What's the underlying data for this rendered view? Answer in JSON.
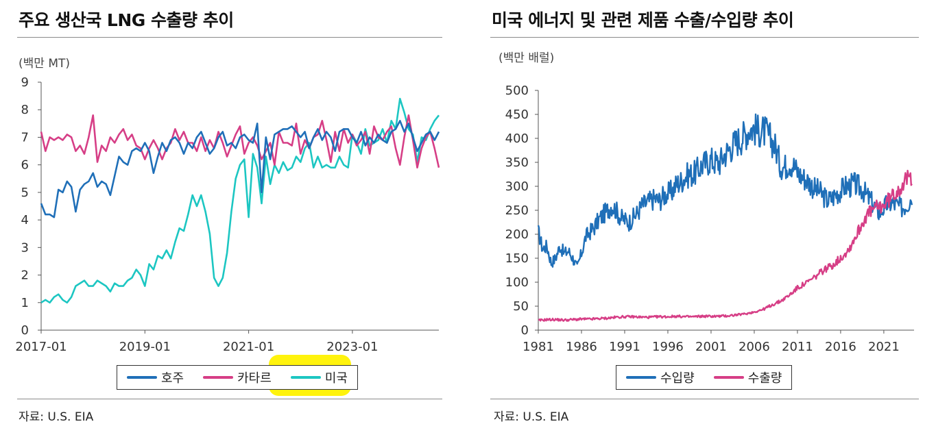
{
  "left": {
    "title": "주요 생산국 LNG 수출량 추이",
    "unit": "(백만 MT)",
    "source": "자료: U.S. EIA",
    "colors": {
      "australia": "#1f6fb8",
      "qatar": "#d63e86",
      "us": "#1cc6c2"
    },
    "chart_data": {
      "type": "line",
      "ylim": [
        0,
        9
      ],
      "yticks": [
        "0",
        "1",
        "2",
        "3",
        "4",
        "5",
        "6",
        "7",
        "8",
        "9"
      ],
      "xticks": [
        {
          "label": "2017-01",
          "index": 0
        },
        {
          "label": "2019-01",
          "index": 24
        },
        {
          "label": "2021-01",
          "index": 48
        },
        {
          "label": "2023-01",
          "index": 72
        }
      ],
      "n_points": 93,
      "series": [
        {
          "name": "호주",
          "key": "australia",
          "values": [
            4.6,
            4.2,
            4.2,
            4.1,
            5.1,
            5.0,
            5.4,
            5.2,
            4.3,
            5.1,
            5.3,
            5.4,
            5.7,
            5.2,
            5.4,
            5.3,
            4.9,
            5.6,
            6.3,
            6.1,
            6.0,
            6.5,
            6.6,
            6.5,
            6.8,
            6.5,
            5.7,
            6.3,
            6.8,
            6.5,
            6.9,
            7.0,
            6.8,
            6.4,
            6.8,
            6.6,
            7.0,
            7.2,
            6.8,
            6.4,
            6.6,
            7.0,
            7.2,
            6.7,
            6.8,
            6.6,
            7.0,
            7.1,
            6.9,
            6.8,
            7.5,
            5.0,
            7.0,
            6.2,
            7.1,
            7.2,
            7.3,
            7.3,
            7.4,
            7.2,
            7.0,
            7.2,
            6.6,
            7.0,
            7.3,
            6.9,
            7.2,
            7.0,
            6.5,
            7.2,
            7.3,
            7.3,
            7.0,
            6.8,
            7.2,
            6.7,
            7.0,
            6.8,
            7.1,
            6.9,
            6.8,
            7.2,
            7.3,
            7.6,
            7.2,
            7.5,
            7.0,
            6.5,
            6.8,
            7.1,
            7.2,
            6.9,
            7.2
          ]
        },
        {
          "name": "카타르",
          "key": "qatar",
          "values": [
            7.2,
            6.5,
            7.0,
            6.9,
            7.0,
            6.9,
            7.1,
            7.0,
            6.5,
            6.7,
            6.4,
            7.0,
            7.8,
            6.1,
            6.7,
            6.5,
            7.0,
            6.8,
            7.1,
            7.3,
            6.9,
            7.1,
            6.7,
            6.6,
            6.2,
            6.6,
            6.9,
            6.6,
            6.2,
            6.6,
            6.8,
            7.3,
            6.9,
            7.2,
            6.8,
            6.8,
            6.5,
            7.0,
            6.5,
            6.9,
            6.6,
            7.2,
            6.8,
            6.3,
            6.7,
            7.1,
            7.4,
            6.4,
            6.8,
            7.0,
            6.7,
            6.2,
            6.5,
            6.8,
            6.0,
            7.2,
            6.8,
            6.8,
            6.7,
            7.5,
            6.4,
            6.9,
            6.6,
            7.0,
            7.1,
            7.6,
            6.9,
            6.1,
            7.2,
            6.5,
            7.3,
            6.8,
            7.1,
            6.7,
            6.9,
            7.2,
            6.4,
            7.4,
            7.0,
            6.9,
            7.2,
            7.4,
            6.6,
            6.0,
            7.0,
            7.8,
            6.9,
            5.9,
            6.6,
            7.0,
            7.2,
            6.6,
            5.9
          ]
        },
        {
          "name": "미국",
          "key": "us",
          "values": [
            1.0,
            1.1,
            1.0,
            1.2,
            1.3,
            1.1,
            1.0,
            1.2,
            1.6,
            1.7,
            1.8,
            1.6,
            1.6,
            1.8,
            1.7,
            1.6,
            1.4,
            1.7,
            1.6,
            1.6,
            1.8,
            1.9,
            2.2,
            2.0,
            1.6,
            2.4,
            2.2,
            2.7,
            2.6,
            2.9,
            2.6,
            3.2,
            3.7,
            3.6,
            4.2,
            4.9,
            4.5,
            4.9,
            4.3,
            3.5,
            1.9,
            1.6,
            1.9,
            2.8,
            4.3,
            5.5,
            6.0,
            6.2,
            4.1,
            6.4,
            5.9,
            4.6,
            6.3,
            5.3,
            6.0,
            5.7,
            6.1,
            5.8,
            5.9,
            6.3,
            6.1,
            6.6,
            6.8,
            5.9,
            6.3,
            5.9,
            6.0,
            5.9,
            5.9,
            6.3,
            6.0,
            5.9,
            7.1,
            6.8,
            6.4,
            7.3,
            6.7,
            6.8,
            6.9,
            7.3,
            6.8,
            7.6,
            7.3,
            8.4,
            7.9,
            7.3,
            7.1,
            6.1,
            7.0,
            6.9,
            7.3,
            7.6,
            7.8
          ]
        }
      ]
    },
    "legend": [
      {
        "key": "australia",
        "label": "호주"
      },
      {
        "key": "qatar",
        "label": "카타르"
      },
      {
        "key": "us",
        "label": "미국"
      }
    ]
  },
  "right": {
    "title": "미국 에너지 및 관련 제품 수출/수입량 추이",
    "unit": "(백만 배럴)",
    "source": "자료: U.S. EIA",
    "colors": {
      "imports": "#1f6fb8",
      "exports": "#d63e86"
    },
    "chart_data": {
      "type": "line",
      "ylim": [
        0,
        500
      ],
      "yticks": [
        "0",
        "50",
        "100",
        "150",
        "200",
        "250",
        "300",
        "350",
        "400",
        "450",
        "500"
      ],
      "xlim": [
        1981,
        2024.5
      ],
      "xticks": [
        "1981",
        "1986",
        "1991",
        "1996",
        "2001",
        "2006",
        "2011",
        "2016",
        "2021"
      ],
      "series": [
        {
          "name": "수입량",
          "key": "imports",
          "anchors": [
            [
              1981,
              205
            ],
            [
              1981.5,
              170
            ],
            [
              1982,
              175
            ],
            [
              1982.5,
              140
            ],
            [
              1983,
              150
            ],
            [
              1983.5,
              175
            ],
            [
              1984,
              160
            ],
            [
              1984.5,
              165
            ],
            [
              1985,
              150
            ],
            [
              1985.5,
              130
            ],
            [
              1986,
              160
            ],
            [
              1986.5,
              195
            ],
            [
              1987,
              205
            ],
            [
              1987.5,
              215
            ],
            [
              1988,
              230
            ],
            [
              1988.5,
              240
            ],
            [
              1989,
              250
            ],
            [
              1989.5,
              260
            ],
            [
              1990,
              250
            ],
            [
              1990.5,
              235
            ],
            [
              1991,
              230
            ],
            [
              1991.5,
              225
            ],
            [
              1992,
              235
            ],
            [
              1992.5,
              245
            ],
            [
              1993,
              260
            ],
            [
              1993.5,
              265
            ],
            [
              1994,
              270
            ],
            [
              1994.5,
              275
            ],
            [
              1995,
              270
            ],
            [
              1995.5,
              280
            ],
            [
              1996,
              285
            ],
            [
              1996.5,
              290
            ],
            [
              1997,
              305
            ],
            [
              1997.5,
              310
            ],
            [
              1998,
              320
            ],
            [
              1998.5,
              325
            ],
            [
              1999,
              325
            ],
            [
              1999.5,
              335
            ],
            [
              2000,
              345
            ],
            [
              2000.5,
              350
            ],
            [
              2001,
              355
            ],
            [
              2001.5,
              350
            ],
            [
              2002,
              350
            ],
            [
              2002.5,
              365
            ],
            [
              2003,
              375
            ],
            [
              2003.5,
              385
            ],
            [
              2004,
              395
            ],
            [
              2004.5,
              400
            ],
            [
              2005,
              410
            ],
            [
              2005.5,
              420
            ],
            [
              2006,
              420
            ],
            [
              2006.5,
              415
            ],
            [
              2007,
              415
            ],
            [
              2007.5,
              410
            ],
            [
              2008,
              395
            ],
            [
              2008.5,
              380
            ],
            [
              2009,
              345
            ],
            [
              2009.5,
              340
            ],
            [
              2010,
              350
            ],
            [
              2010.5,
              345
            ],
            [
              2011,
              330
            ],
            [
              2011.5,
              320
            ],
            [
              2012,
              315
            ],
            [
              2012.5,
              305
            ],
            [
              2013,
              295
            ],
            [
              2013.5,
              290
            ],
            [
              2014,
              280
            ],
            [
              2014.5,
              270
            ],
            [
              2015,
              275
            ],
            [
              2015.5,
              285
            ],
            [
              2016,
              290
            ],
            [
              2016.5,
              300
            ],
            [
              2017,
              300
            ],
            [
              2017.5,
              305
            ],
            [
              2018,
              300
            ],
            [
              2018.5,
              295
            ],
            [
              2019,
              280
            ],
            [
              2019.5,
              270
            ],
            [
              2020,
              255
            ],
            [
              2020.5,
              245
            ],
            [
              2021,
              255
            ],
            [
              2021.5,
              265
            ],
            [
              2022,
              265
            ],
            [
              2022.5,
              260
            ],
            [
              2023,
              255
            ],
            [
              2023.5,
              260
            ],
            [
              2024,
              270
            ],
            [
              2024.3,
              285
            ]
          ]
        },
        {
          "name": "수출량",
          "key": "exports",
          "anchors": [
            [
              1981,
              20
            ],
            [
              1982,
              22
            ],
            [
              1983,
              22
            ],
            [
              1984,
              21
            ],
            [
              1985,
              22
            ],
            [
              1986,
              23
            ],
            [
              1987,
              23
            ],
            [
              1988,
              24
            ],
            [
              1989,
              25
            ],
            [
              1990,
              27
            ],
            [
              1991,
              28
            ],
            [
              1992,
              28
            ],
            [
              1993,
              27
            ],
            [
              1994,
              27
            ],
            [
              1995,
              28
            ],
            [
              1996,
              28
            ],
            [
              1997,
              29
            ],
            [
              1998,
              28
            ],
            [
              1999,
              28
            ],
            [
              2000,
              29
            ],
            [
              2001,
              29
            ],
            [
              2002,
              29
            ],
            [
              2003,
              30
            ],
            [
              2004,
              32
            ],
            [
              2005,
              34
            ],
            [
              2006,
              38
            ],
            [
              2007,
              43
            ],
            [
              2008,
              52
            ],
            [
              2009,
              60
            ],
            [
              2010,
              72
            ],
            [
              2011,
              88
            ],
            [
              2012,
              98
            ],
            [
              2013,
              110
            ],
            [
              2014,
              125
            ],
            [
              2015,
              135
            ],
            [
              2016,
              150
            ],
            [
              2017,
              170
            ],
            [
              2018,
              205
            ],
            [
              2019,
              240
            ],
            [
              2020,
              255
            ],
            [
              2021,
              260
            ],
            [
              2022,
              280
            ],
            [
              2023,
              300
            ],
            [
              2024,
              320
            ],
            [
              2024.3,
              320
            ]
          ]
        }
      ]
    },
    "legend": [
      {
        "key": "imports",
        "label": "수입량"
      },
      {
        "key": "exports",
        "label": "수출량"
      }
    ]
  }
}
